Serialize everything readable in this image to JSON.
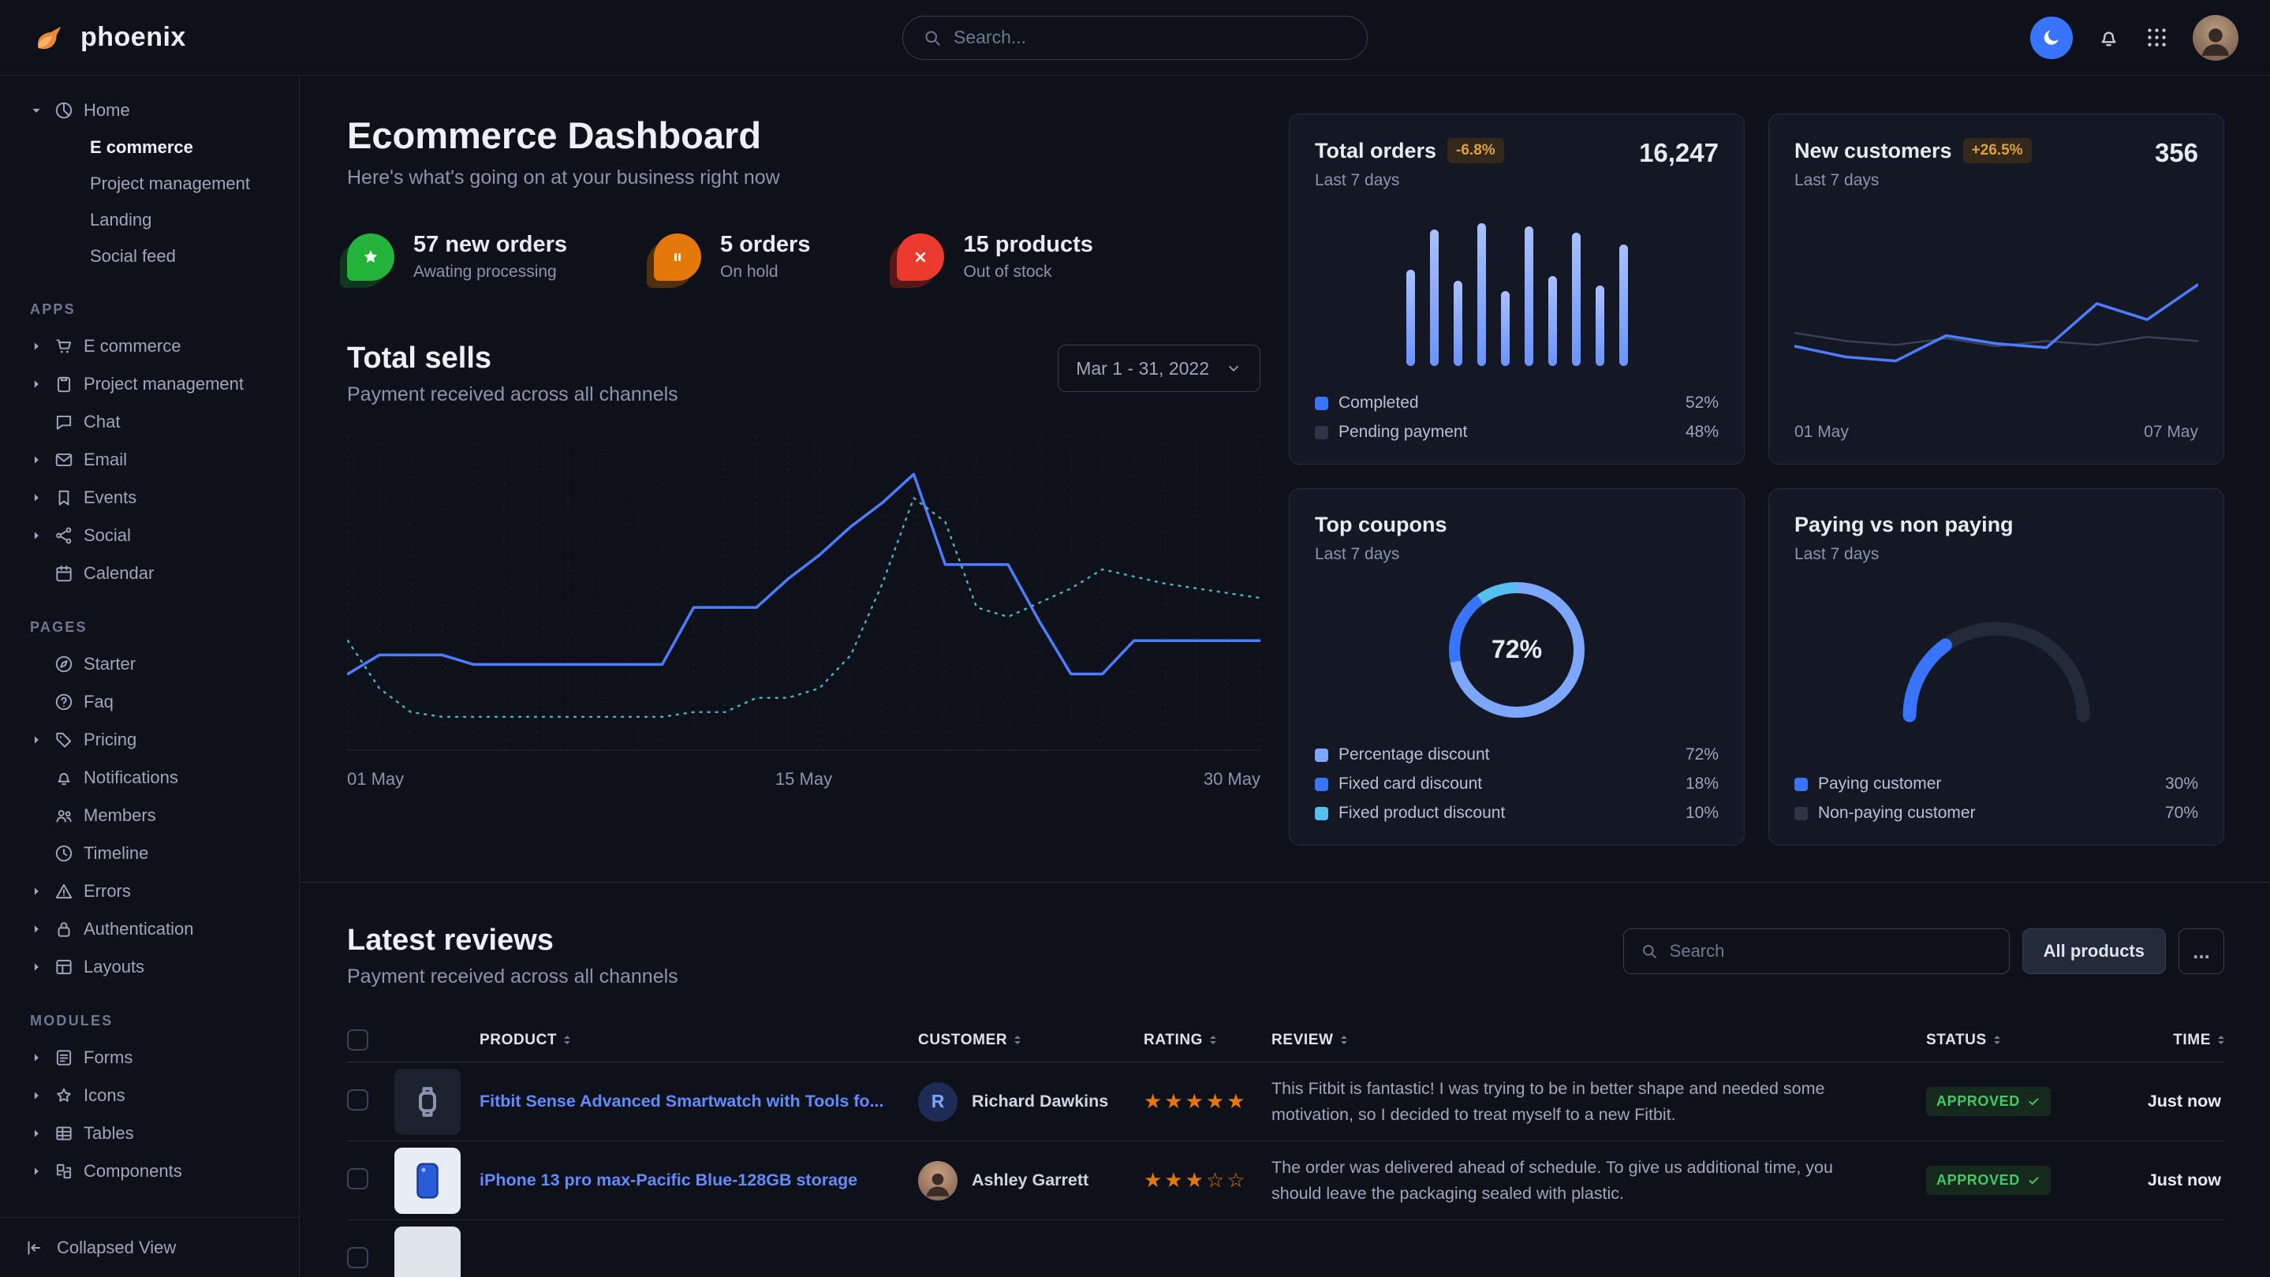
{
  "navbar": {
    "brand": "phoenix",
    "search_placeholder": "Search..."
  },
  "sidebar": {
    "home": {
      "label": "Home",
      "children": [
        "E commerce",
        "Project management",
        "Landing",
        "Social feed"
      ],
      "active_child": "E commerce"
    },
    "sections": [
      {
        "title": "APPS",
        "items": [
          {
            "label": "E commerce",
            "icon": "cart",
            "caret": true
          },
          {
            "label": "Project management",
            "icon": "clipboard",
            "caret": true
          },
          {
            "label": "Chat",
            "icon": "chat",
            "caret": false
          },
          {
            "label": "Email",
            "icon": "mail",
            "caret": true
          },
          {
            "label": "Events",
            "icon": "bookmark",
            "caret": true
          },
          {
            "label": "Social",
            "icon": "share",
            "caret": true
          },
          {
            "label": "Calendar",
            "icon": "calendar",
            "caret": false
          }
        ]
      },
      {
        "title": "PAGES",
        "items": [
          {
            "label": "Starter",
            "icon": "compass",
            "caret": false
          },
          {
            "label": "Faq",
            "icon": "question",
            "caret": false
          },
          {
            "label": "Pricing",
            "icon": "tag",
            "caret": true
          },
          {
            "label": "Notifications",
            "icon": "bell",
            "caret": false
          },
          {
            "label": "Members",
            "icon": "users",
            "caret": false
          },
          {
            "label": "Timeline",
            "icon": "clock",
            "caret": false
          },
          {
            "label": "Errors",
            "icon": "warning",
            "caret": true
          },
          {
            "label": "Authentication",
            "icon": "lock",
            "caret": true
          },
          {
            "label": "Layouts",
            "icon": "layout",
            "caret": true
          }
        ]
      },
      {
        "title": "MODULES",
        "items": [
          {
            "label": "Forms",
            "icon": "form",
            "caret": true
          },
          {
            "label": "Icons",
            "icon": "star",
            "caret": true
          },
          {
            "label": "Tables",
            "icon": "table",
            "caret": true
          },
          {
            "label": "Components",
            "icon": "puzzle",
            "caret": true
          }
        ]
      }
    ],
    "collapse_label": "Collapsed View"
  },
  "page": {
    "title": "Ecommerce Dashboard",
    "subtitle": "Here's what's going on at your business right now"
  },
  "stats": [
    {
      "value": "57 new orders",
      "caption": "Awating processing"
    },
    {
      "value": "5 orders",
      "caption": "On hold"
    },
    {
      "value": "15 products",
      "caption": "Out of stock"
    }
  ],
  "total_sells": {
    "title": "Total sells",
    "subtitle": "Payment received across all channels",
    "date_range": "Mar 1 - 31, 2022"
  },
  "cards": {
    "total_orders": {
      "title": "Total orders",
      "badge": "-6.8%",
      "period": "Last 7 days",
      "value": "16,247",
      "legend": [
        {
          "label": "Completed",
          "value": "52%"
        },
        {
          "label": "Pending payment",
          "value": "48%"
        }
      ]
    },
    "new_customers": {
      "title": "New customers",
      "badge": "+26.5%",
      "period": "Last 7 days",
      "value": "356"
    },
    "top_coupons": {
      "title": "Top coupons",
      "period": "Last 7 days",
      "legend": [
        {
          "label": "Percentage discount",
          "value": "72%"
        },
        {
          "label": "Fixed card discount",
          "value": "18%"
        },
        {
          "label": "Fixed product discount",
          "value": "10%"
        }
      ]
    },
    "paying": {
      "title": "Paying vs non paying",
      "period": "Last 7 days",
      "legend": [
        {
          "label": "Paying customer",
          "value": "30%"
        },
        {
          "label": "Non-paying customer",
          "value": "70%"
        }
      ]
    }
  },
  "reviews": {
    "title": "Latest reviews",
    "subtitle": "Payment received across all channels",
    "search_placeholder": "Search",
    "all_products_label": "All products",
    "dots_label": "...",
    "columns": [
      "PRODUCT",
      "CUSTOMER",
      "RATING",
      "REVIEW",
      "STATUS",
      "TIME"
    ],
    "rows": [
      {
        "product": "Fitbit Sense Advanced Smartwatch with Tools fo...",
        "customer": "Richard Dawkins",
        "avatar_type": "initial",
        "avatar_initial": "R",
        "rating": 5,
        "review": "This Fitbit is fantastic! I was trying to be in better shape and needed some motivation, so I decided to treat myself to a new Fitbit.",
        "status": "APPROVED",
        "time": "Just now",
        "thumb": "watch"
      },
      {
        "product": "iPhone 13 pro max-Pacific Blue-128GB storage",
        "customer": "Ashley Garrett",
        "avatar_type": "photo",
        "avatar_initial": "",
        "rating": 3,
        "review": "The order was delivered ahead of schedule. To give us additional time, you should leave the packaging sealed with plastic.",
        "status": "APPROVED",
        "time": "Just now",
        "thumb": "phone"
      },
      {
        "product": "",
        "customer": "",
        "avatar_type": "none",
        "avatar_initial": "",
        "rating": 0,
        "review": "",
        "status": "",
        "time": "",
        "thumb": "light"
      }
    ]
  },
  "chart_data": [
    {
      "id": "total_sells",
      "type": "line",
      "title": "Total sells",
      "x_labels": [
        "01 May",
        "15 May",
        "30 May"
      ],
      "ylim": [
        0,
        13
      ],
      "grid": 30,
      "series": [
        {
          "name": "current",
          "color": "#4c7cff",
          "width": 3.5,
          "dash": false,
          "values": [
            3.2,
            4.0,
            4.0,
            4.0,
            3.6,
            3.6,
            3.6,
            3.6,
            3.6,
            3.6,
            3.6,
            6.0,
            6.0,
            6.0,
            7.2,
            8.2,
            9.4,
            10.4,
            11.6,
            7.8,
            7.8,
            7.8,
            5.4,
            3.2,
            3.2,
            4.6,
            4.6,
            4.6,
            4.6,
            4.6
          ]
        },
        {
          "name": "previous",
          "color": "#45b8c8",
          "width": 2.4,
          "dash": true,
          "values": [
            4.6,
            2.6,
            1.6,
            1.4,
            1.4,
            1.4,
            1.4,
            1.4,
            1.4,
            1.4,
            1.4,
            1.6,
            1.6,
            2.2,
            2.2,
            2.6,
            4.0,
            7.0,
            10.6,
            9.6,
            6.0,
            5.6,
            6.2,
            6.8,
            7.6,
            7.3,
            7.0,
            6.8,
            6.6,
            6.4
          ]
        }
      ]
    },
    {
      "id": "total_orders_bars",
      "type": "bar",
      "title": "Total orders (last 7 days)",
      "values": [
        62,
        88,
        55,
        92,
        48,
        90,
        58,
        86,
        52,
        78
      ],
      "ylim": [
        0,
        100
      ],
      "color_top": "#a9c0ff",
      "color_bottom": "#6b93ff"
    },
    {
      "id": "new_customers",
      "type": "line",
      "title": "New customers (last 7 days)",
      "x_labels": [
        "01 May",
        "07 May"
      ],
      "ylim": [
        0,
        10
      ],
      "grid": 0,
      "series": [
        {
          "name": "previous",
          "color": "#3a4257",
          "width": 2.4,
          "dash": false,
          "values": [
            5.2,
            4.6,
            4.3,
            4.8,
            4.2,
            4.6,
            4.3,
            4.9,
            4.6
          ]
        },
        {
          "name": "current",
          "color": "#4c7cff",
          "width": 3.5,
          "dash": false,
          "values": [
            4.2,
            3.4,
            3.1,
            5.0,
            4.4,
            4.1,
            7.4,
            6.2,
            8.8
          ]
        }
      ]
    },
    {
      "id": "top_coupons",
      "type": "donut",
      "title": "Top coupons (last 7 days)",
      "center_label": "72%",
      "slices": [
        {
          "label": "Percentage discount",
          "value": 72,
          "color": "#7da6ff"
        },
        {
          "label": "Fixed card discount",
          "value": 18,
          "color": "#3874ff"
        },
        {
          "label": "Fixed product discount",
          "value": 10,
          "color": "#55c0f0"
        }
      ]
    },
    {
      "id": "paying_gauge",
      "type": "gauge",
      "title": "Paying vs non paying (last 7 days)",
      "value": 30,
      "max": 100,
      "color": "#3874ff",
      "track": "#232a3a"
    }
  ]
}
